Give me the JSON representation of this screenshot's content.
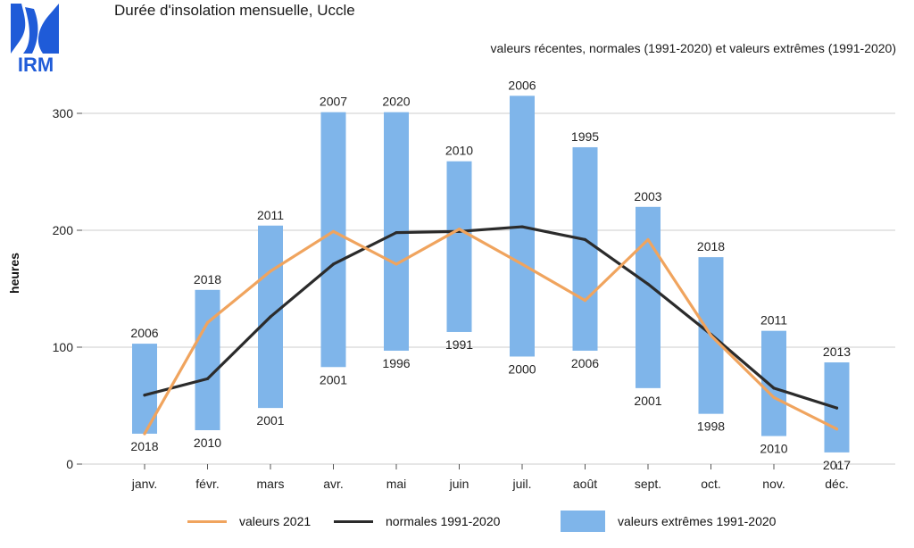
{
  "header": {
    "logo_text": "IRM",
    "title": "Durée d'insolation mensuelle, Uccle",
    "subtitle": "valeurs récentes, normales (1991-2020) et valeurs extrêmes (1991-2020)"
  },
  "colors": {
    "recent": "#f0a45e",
    "normal": "#2b2b2b",
    "extremes": "#7fb5ea",
    "logo": "#1f5bd8",
    "grid": "#cccccc"
  },
  "legend": {
    "recent": "valeurs 2021",
    "normal": "normales 1991-2020",
    "extremes": "valeurs extrêmes 1991-2020"
  },
  "chart_data": {
    "type": "bar",
    "ylabel": "heures",
    "xlabel": "",
    "ylim": [
      0,
      320
    ],
    "yticks": [
      0,
      100,
      200,
      300
    ],
    "grid": true,
    "legend_position": "bottom",
    "categories": [
      "janv.",
      "févr.",
      "mars",
      "avr.",
      "mai",
      "juin",
      "juil.",
      "août",
      "sept.",
      "oct.",
      "nov.",
      "déc."
    ],
    "series": [
      {
        "name": "valeurs extrêmes 1991-2020",
        "kind": "range-bar",
        "max_values": [
          103,
          149,
          204,
          301,
          301,
          259,
          315,
          271,
          220,
          177,
          114,
          87
        ],
        "max_years": [
          "2006",
          "2018",
          "2011",
          "2007",
          "2020",
          "2010",
          "2006",
          "1995",
          "2003",
          "2018",
          "2011",
          "2013"
        ],
        "min_values": [
          26,
          29,
          48,
          83,
          97,
          113,
          92,
          97,
          65,
          43,
          24,
          10
        ],
        "min_years": [
          "2018",
          "2010",
          "2001",
          "2001",
          "1996",
          "1991",
          "2000",
          "2006",
          "2001",
          "1998",
          "2010",
          "2017"
        ]
      },
      {
        "name": "normales 1991-2020",
        "kind": "line",
        "values": [
          59,
          73,
          126,
          171,
          198,
          199,
          203,
          192,
          154,
          111,
          65,
          48
        ]
      },
      {
        "name": "valeurs 2021",
        "kind": "line",
        "values": [
          26,
          121,
          165,
          199,
          171,
          201,
          171,
          140,
          192,
          110,
          57,
          30
        ]
      }
    ]
  }
}
